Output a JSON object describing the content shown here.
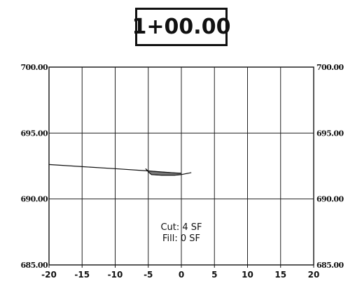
{
  "station": "1+00.00",
  "chart_data": {
    "type": "line",
    "title": "",
    "xlabel": "",
    "ylabel": "",
    "xlim": [
      -20,
      20
    ],
    "ylim": [
      685,
      700
    ],
    "x_ticks": [
      -20,
      -15,
      -10,
      -5,
      0,
      5,
      10,
      15,
      20
    ],
    "x_tick_labels": [
      "-20",
      "-15",
      "-10",
      "-5",
      "0",
      "5",
      "10",
      "15",
      "20"
    ],
    "y_ticks": [
      685,
      690,
      695,
      700
    ],
    "y_tick_labels": [
      "685.00",
      "690.00",
      "695.00",
      "700.00"
    ],
    "grid": true,
    "series": [
      {
        "x": [
          -20,
          -15,
          -10,
          -5,
          -3,
          -1,
          0
        ],
        "y": [
          692.61,
          692.45,
          692.3,
          692.13,
          692.05,
          691.98,
          691.95
        ],
        "color": "#111111"
      },
      {
        "x": [
          -5.4,
          -5,
          -4.5,
          -3,
          -1,
          0,
          0.5,
          1,
          1.5
        ],
        "y": [
          692.3,
          692.05,
          691.85,
          691.8,
          691.8,
          691.85,
          691.9,
          691.95,
          692.0
        ],
        "color": "#111111"
      }
    ],
    "annotations": {
      "cut": "Cut: 4  SF",
      "fill": "Fill: 0  SF"
    }
  }
}
